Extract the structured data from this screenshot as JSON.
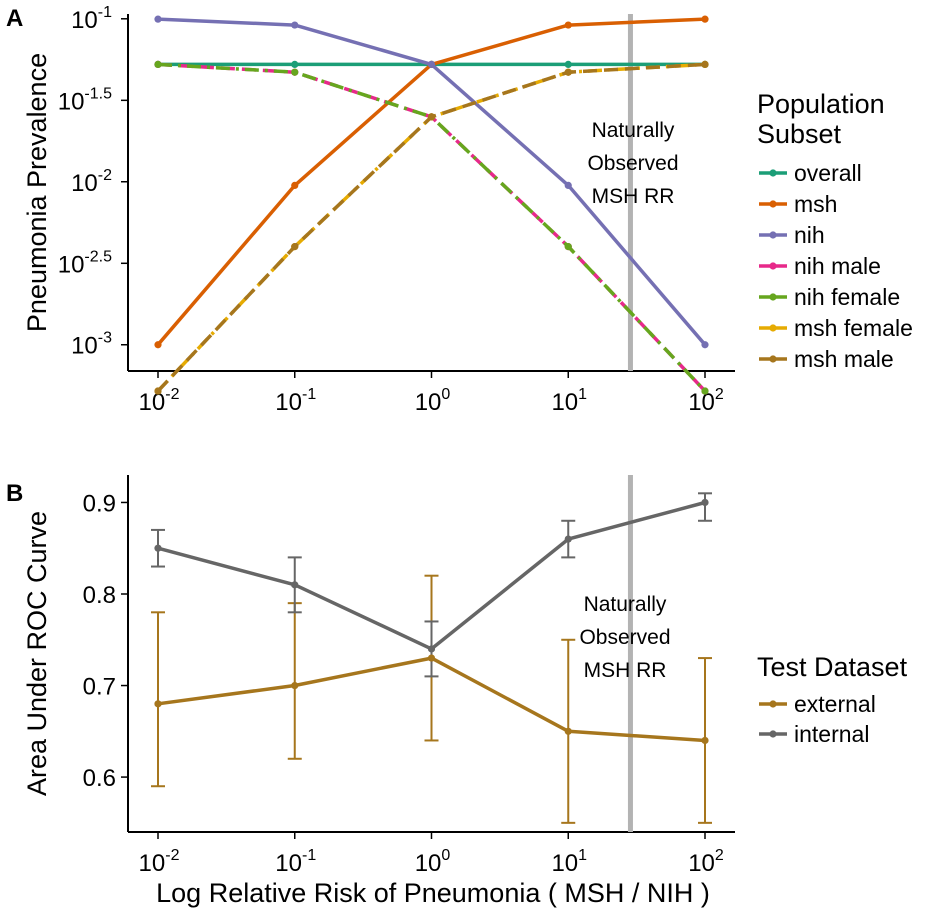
{
  "figure": {
    "xlabel": "Log Relative Risk of Pneumonia ( MSH / NIH )",
    "x_ticks": [
      {
        "base": "10",
        "exp": "-2"
      },
      {
        "base": "10",
        "exp": "-1"
      },
      {
        "base": "10",
        "exp": "0"
      },
      {
        "base": "10",
        "exp": "1"
      },
      {
        "base": "10",
        "exp": "2"
      }
    ]
  },
  "chart_data": [
    {
      "panel": "A",
      "type": "line",
      "title": "",
      "xlabel": "Log Relative Risk of Pneumonia ( MSH / NIH )",
      "ylabel": "Pneumonia Prevalence",
      "x_scale": "log10",
      "y_scale": "log10",
      "x": [
        0.01,
        0.1,
        1,
        10,
        100
      ],
      "xlim": [
        0.01,
        100
      ],
      "ylim": [
        0.00069,
        0.107
      ],
      "y_ticks": [
        {
          "value": 0.001,
          "base": "10",
          "exp": "-3"
        },
        {
          "value": 0.00316,
          "base": "10",
          "exp": "-2.5"
        },
        {
          "value": 0.01,
          "base": "10",
          "exp": "-2"
        },
        {
          "value": 0.0316,
          "base": "10",
          "exp": "-1.5"
        },
        {
          "value": 0.1,
          "base": "10",
          "exp": "-1"
        }
      ],
      "grid": false,
      "legend": {
        "title": "Population Subset",
        "position": "right"
      },
      "series": [
        {
          "name": "overall",
          "color": "#1b9e77",
          "dash": "solid",
          "values": [
            0.0525,
            0.0525,
            0.0525,
            0.0525,
            0.0525
          ]
        },
        {
          "name": "msh",
          "color": "#d95f02",
          "dash": "solid",
          "values": [
            0.001,
            0.0095,
            0.0525,
            0.0915,
            0.0995
          ]
        },
        {
          "name": "nih",
          "color": "#7570b3",
          "dash": "solid",
          "values": [
            0.0995,
            0.0915,
            0.0525,
            0.0095,
            0.001
          ]
        },
        {
          "name": "nih male",
          "color": "#e7298a",
          "dash": "longdash",
          "values": [
            0.0525,
            0.047,
            0.025,
            0.004,
            0.00052
          ]
        },
        {
          "name": "nih female",
          "color": "#66a61e",
          "dash": "dashdot",
          "values": [
            0.0525,
            0.047,
            0.025,
            0.004,
            0.00052
          ]
        },
        {
          "name": "msh female",
          "color": "#e6ab02",
          "dash": "dashdot",
          "values": [
            0.00052,
            0.004,
            0.025,
            0.047,
            0.0525
          ]
        },
        {
          "name": "msh male",
          "color": "#a6761d",
          "dash": "longdash",
          "values": [
            0.00052,
            0.004,
            0.025,
            0.047,
            0.0525
          ]
        }
      ],
      "vline": {
        "x": 28.5,
        "color": "#b3b3b3"
      },
      "annotation": [
        "Naturally",
        "Observed",
        "MSH RR"
      ]
    },
    {
      "panel": "B",
      "type": "line",
      "title": "",
      "xlabel": "Log Relative Risk of Pneumonia ( MSH / NIH )",
      "ylabel": "Area Under ROC Curve",
      "x_scale": "log10",
      "x": [
        0.01,
        0.1,
        1,
        10,
        100
      ],
      "xlim": [
        0.01,
        100
      ],
      "ylim": [
        0.54,
        0.93
      ],
      "y_ticks": [
        {
          "value": 0.6,
          "label": "0.6"
        },
        {
          "value": 0.7,
          "label": "0.7"
        },
        {
          "value": 0.8,
          "label": "0.8"
        },
        {
          "value": 0.9,
          "label": "0.9"
        }
      ],
      "grid": false,
      "legend": {
        "title": "Test Dataset",
        "position": "right"
      },
      "series": [
        {
          "name": "external",
          "color": "#a6761d",
          "values": [
            0.68,
            0.7,
            0.73,
            0.65,
            0.64
          ],
          "err_low": [
            0.59,
            0.62,
            0.64,
            0.55,
            0.55
          ],
          "err_high": [
            0.78,
            0.79,
            0.82,
            0.75,
            0.73
          ]
        },
        {
          "name": "internal",
          "color": "#666666",
          "values": [
            0.85,
            0.81,
            0.74,
            0.86,
            0.9
          ],
          "err_low": [
            0.83,
            0.78,
            0.71,
            0.84,
            0.88
          ],
          "err_high": [
            0.87,
            0.84,
            0.77,
            0.88,
            0.91
          ]
        }
      ],
      "vline": {
        "x": 28.5,
        "color": "#b3b3b3"
      },
      "annotation": [
        "Naturally",
        "Observed",
        "MSH RR"
      ]
    }
  ]
}
